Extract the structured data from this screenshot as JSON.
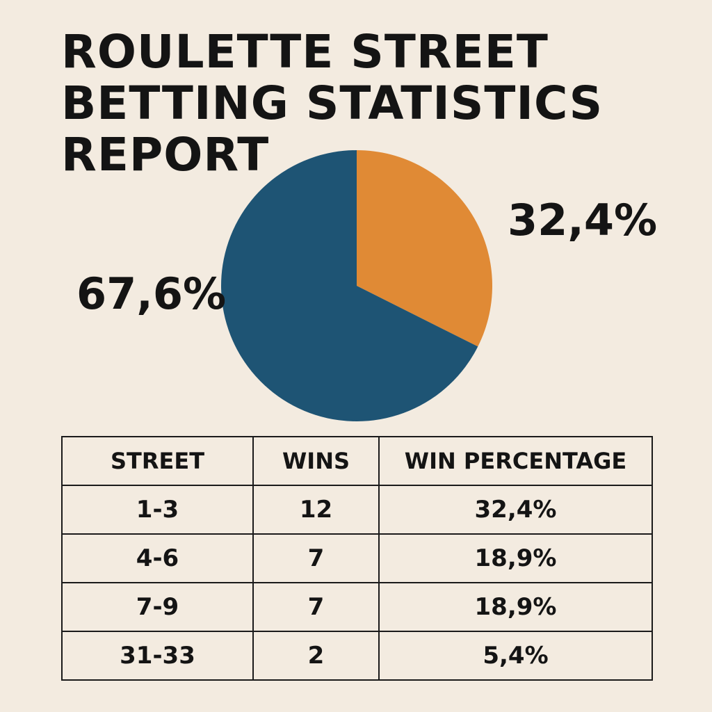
{
  "title_lines": [
    "ROULETTE STREET",
    "BETTING STATISTICS",
    "REPORT"
  ],
  "chart_data": {
    "type": "pie",
    "title": "ROULETTE STREET BETTING STATISTICS REPORT",
    "slices": [
      {
        "label": "32,4%",
        "value": 32.4,
        "color": "#e08a35"
      },
      {
        "label": "67,6%",
        "value": 67.6,
        "color": "#1e5474"
      }
    ],
    "start_angle": "12 o'clock",
    "direction": "clockwise"
  },
  "table": {
    "headers": [
      "STREET",
      "WINS",
      "WIN PERCENTAGE"
    ],
    "rows": [
      [
        "1-3",
        "12",
        "32,4%"
      ],
      [
        "4-6",
        "7",
        "18,9%"
      ],
      [
        "7-9",
        "7",
        "18,9%"
      ],
      [
        "31-33",
        "2",
        "5,4%"
      ]
    ]
  }
}
